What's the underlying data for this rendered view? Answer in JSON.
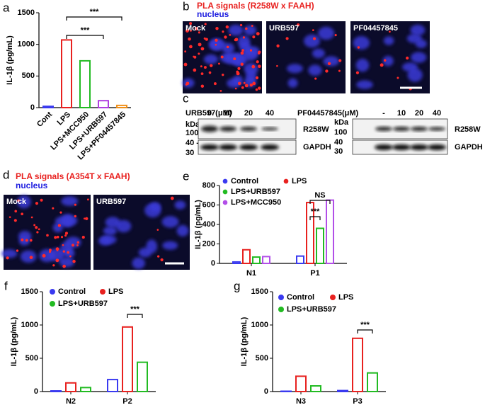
{
  "chart_data": [
    {
      "panel": "a",
      "type": "bar",
      "ylabel": "IL-1β (pg/mL)",
      "categories": [
        "Cont",
        "LPS",
        "LPS+MCC950",
        "LPS+URB597",
        "LPS+PF04457845"
      ],
      "values": [
        20,
        1070,
        740,
        110,
        35
      ],
      "colors": [
        "#3a3af0",
        "#e8211f",
        "#22bb22",
        "#b040e0",
        "#f0901a"
      ],
      "ylim": [
        0,
        1500
      ],
      "yticks": [
        0,
        500,
        1000,
        1500
      ],
      "annotations": [
        "***",
        "***"
      ]
    },
    {
      "panel": "e",
      "type": "grouped_bar",
      "ylabel": "IL-1β (pg/mL)",
      "categories": [
        "N1",
        "P1"
      ],
      "series": [
        {
          "name": "Control",
          "color": "#3a3af0",
          "values": [
            15,
            75
          ]
        },
        {
          "name": "LPS",
          "color": "#e8211f",
          "values": [
            140,
            625
          ]
        },
        {
          "name": "LPS+URB597",
          "color": "#22bb22",
          "values": [
            65,
            360
          ]
        },
        {
          "name": "LPS+MCC950",
          "color": "#b24ee8",
          "values": [
            70,
            650
          ]
        }
      ],
      "ylim": [
        0,
        800
      ],
      "yticks": [
        0,
        200,
        400,
        600,
        800
      ],
      "annotations": [
        "***",
        "NS"
      ]
    },
    {
      "panel": "f",
      "type": "grouped_bar",
      "ylabel": "IL-1β (pg/mL)",
      "categories": [
        "N2",
        "P2"
      ],
      "series": [
        {
          "name": "Control",
          "color": "#3a3af0",
          "values": [
            10,
            180
          ]
        },
        {
          "name": "LPS",
          "color": "#e8211f",
          "values": [
            130,
            970
          ]
        },
        {
          "name": "LPS+URB597",
          "color": "#22bb22",
          "values": [
            60,
            440
          ]
        }
      ],
      "ylim": [
        0,
        1500
      ],
      "yticks": [
        0,
        500,
        1000,
        1500
      ],
      "annotations": [
        "***"
      ]
    },
    {
      "panel": "g",
      "type": "grouped_bar",
      "ylabel": "IL-1β (pg/mL)",
      "categories": [
        "N3",
        "P3"
      ],
      "series": [
        {
          "name": "Control",
          "color": "#3a3af0",
          "values": [
            5,
            15
          ]
        },
        {
          "name": "LPS",
          "color": "#e8211f",
          "values": [
            230,
            800
          ]
        },
        {
          "name": "LPS+URB597",
          "color": "#22bb22",
          "values": [
            85,
            280
          ]
        }
      ],
      "ylim": [
        0,
        1500
      ],
      "yticks": [
        0,
        500,
        1000,
        1500
      ],
      "annotations": [
        "***"
      ]
    }
  ],
  "images": {
    "b": {
      "panel": "b",
      "title": "PLA signals (R258W x FAAH)",
      "subtitle": "nucleus",
      "labels": [
        "Mock",
        "URB597",
        "PF04457845"
      ]
    },
    "c": {
      "panel": "c",
      "left": {
        "treatment": "URB597(μM)",
        "doses": [
          "0",
          "10",
          "20",
          "40"
        ],
        "kda": "kDa",
        "markers": [
          "100",
          "40 -",
          "30"
        ],
        "bands": [
          "R258W",
          "GAPDH"
        ]
      },
      "right": {
        "treatment": "PF04457845(μM)",
        "doses": [
          "-",
          "10",
          "20",
          "40"
        ],
        "kda": "kDa",
        "markers": [
          "100",
          "40",
          "30"
        ],
        "bands": [
          "R258W",
          "GAPDH"
        ]
      }
    },
    "d": {
      "panel": "d",
      "title": "PLA signals (A354T x FAAH)",
      "subtitle": "nucleus",
      "labels": [
        "Mock",
        "URB597"
      ]
    }
  }
}
